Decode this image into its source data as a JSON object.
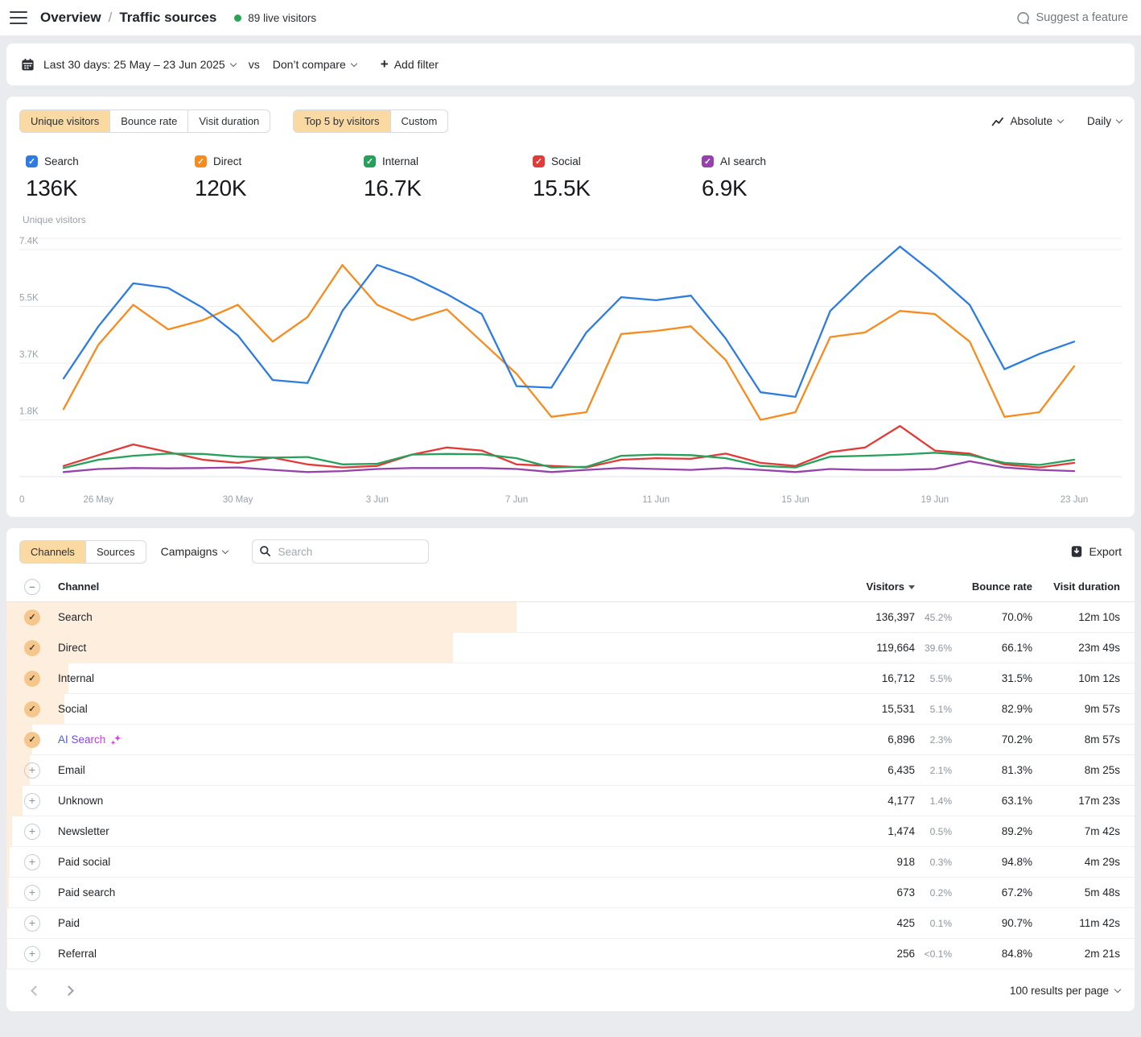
{
  "header": {
    "breadcrumb": [
      "Overview",
      "Traffic sources"
    ],
    "breadcrumb_sep": "/",
    "live_visitors": "89 live visitors",
    "suggest_label": "Suggest a feature"
  },
  "filter_bar": {
    "date_range": "Last 30 days: 25 May – 23 Jun 2025",
    "vs_label": "vs",
    "compare_label": "Don’t compare",
    "add_filter_label": "Add filter"
  },
  "chart_card": {
    "metric_tabs": {
      "items": [
        "Unique visitors",
        "Bounce rate",
        "Visit duration"
      ],
      "selected": 0
    },
    "view_tabs": {
      "items": [
        "Top 5 by visitors",
        "Custom"
      ],
      "selected": 0
    },
    "absolute_label": "Absolute",
    "interval_label": "Daily",
    "metrics": [
      {
        "label": "Search",
        "value": "136K",
        "color": "#2f7ce0"
      },
      {
        "label": "Direct",
        "value": "120K",
        "color": "#f78b1e"
      },
      {
        "label": "Internal",
        "value": "16.7K",
        "color": "#27a05b"
      },
      {
        "label": "Social",
        "value": "15.5K",
        "color": "#e23a38"
      },
      {
        "label": "AI search",
        "value": "6.9K",
        "color": "#9642ab"
      }
    ],
    "axis_label": "Unique visitors"
  },
  "chart_data": {
    "type": "line",
    "title": "Unique visitors",
    "grid": true,
    "legend_position": "top",
    "ylim": [
      0,
      7900
    ],
    "y_ticks": [
      {
        "label": "7.4K",
        "value": 7400
      },
      {
        "label": "5.5K",
        "value": 5550
      },
      {
        "label": "3.7K",
        "value": 3700
      },
      {
        "label": "1.8K",
        "value": 1850
      },
      {
        "label": "0",
        "value": 0
      }
    ],
    "x": [
      "25 May",
      "26 May",
      "27 May",
      "28 May",
      "29 May",
      "30 May",
      "31 May",
      "1 Jun",
      "2 Jun",
      "3 Jun",
      "4 Jun",
      "5 Jun",
      "6 Jun",
      "7 Jun",
      "8 Jun",
      "9 Jun",
      "10 Jun",
      "11 Jun",
      "12 Jun",
      "13 Jun",
      "14 Jun",
      "15 Jun",
      "16 Jun",
      "17 Jun",
      "18 Jun",
      "19 Jun",
      "20 Jun",
      "21 Jun",
      "22 Jun",
      "23 Jun"
    ],
    "x_ticks": [
      {
        "i": 1,
        "label": "26 May"
      },
      {
        "i": 5,
        "label": "30 May"
      },
      {
        "i": 9,
        "label": "3 Jun"
      },
      {
        "i": 13,
        "label": "7 Jun"
      },
      {
        "i": 17,
        "label": "11 Jun"
      },
      {
        "i": 21,
        "label": "15 Jun"
      },
      {
        "i": 25,
        "label": "19 Jun"
      },
      {
        "i": 29,
        "label": "23 Jun"
      }
    ],
    "series": [
      {
        "name": "Search",
        "color": "#2f7ce0",
        "values": [
          3200,
          4900,
          6300,
          6150,
          5500,
          4600,
          3150,
          3050,
          5400,
          6900,
          6500,
          5950,
          5300,
          2950,
          2900,
          4700,
          5850,
          5750,
          5900,
          4500,
          2750,
          2600,
          5400,
          6500,
          7500,
          6600,
          5600,
          3500,
          4000,
          4400
        ]
      },
      {
        "name": "Direct",
        "color": "#f78b1e",
        "values": [
          2200,
          4300,
          5600,
          4800,
          5100,
          5600,
          4400,
          5200,
          6900,
          5600,
          5100,
          5450,
          4400,
          3350,
          1950,
          2100,
          4650,
          4750,
          4900,
          3800,
          1850,
          2100,
          4550,
          4700,
          5400,
          5300,
          4400,
          1950,
          2100,
          3600
        ]
      },
      {
        "name": "Internal",
        "color": "#27a05b",
        "values": [
          280,
          550,
          680,
          750,
          740,
          650,
          620,
          640,
          400,
          420,
          720,
          740,
          730,
          600,
          300,
          320,
          680,
          720,
          700,
          600,
          350,
          300,
          650,
          680,
          720,
          780,
          700,
          450,
          380,
          550
        ]
      },
      {
        "name": "Social",
        "color": "#e23a38",
        "values": [
          350,
          700,
          1050,
          800,
          550,
          450,
          620,
          400,
          300,
          350,
          720,
          950,
          850,
          400,
          350,
          300,
          550,
          600,
          580,
          750,
          450,
          350,
          800,
          950,
          1650,
          850,
          750,
          400,
          300,
          450
        ]
      },
      {
        "name": "AI search",
        "color": "#9642ab",
        "values": [
          150,
          250,
          280,
          270,
          280,
          300,
          220,
          150,
          180,
          250,
          280,
          280,
          280,
          250,
          150,
          220,
          280,
          250,
          220,
          280,
          220,
          150,
          250,
          220,
          220,
          250,
          500,
          300,
          220,
          180
        ]
      }
    ]
  },
  "table_card": {
    "tabs": {
      "items": [
        "Channels",
        "Sources"
      ],
      "selected": 0
    },
    "campaigns_label": "Campaigns",
    "search_placeholder": "Search",
    "export_label": "Export",
    "columns": {
      "channel": "Channel",
      "visitors": "Visitors",
      "bounce": "Bounce rate",
      "duration": "Visit duration"
    },
    "rows": [
      {
        "channel": "Search",
        "state": "checked",
        "ai": false,
        "visitors": "136,397",
        "share": "45.2%",
        "share_pct": 45.2,
        "bounce": "70.0%",
        "duration": "12m 10s"
      },
      {
        "channel": "Direct",
        "state": "checked",
        "ai": false,
        "visitors": "119,664",
        "share": "39.6%",
        "share_pct": 39.6,
        "bounce": "66.1%",
        "duration": "23m 49s"
      },
      {
        "channel": "Internal",
        "state": "checked",
        "ai": false,
        "visitors": "16,712",
        "share": "5.5%",
        "share_pct": 5.5,
        "bounce": "31.5%",
        "duration": "10m 12s"
      },
      {
        "channel": "Social",
        "state": "checked",
        "ai": false,
        "visitors": "15,531",
        "share": "5.1%",
        "share_pct": 5.1,
        "bounce": "82.9%",
        "duration": "9m 57s"
      },
      {
        "channel": "AI Search",
        "state": "checked",
        "ai": true,
        "visitors": "6,896",
        "share": "2.3%",
        "share_pct": 2.3,
        "bounce": "70.2%",
        "duration": "8m 57s"
      },
      {
        "channel": "Email",
        "state": "addable",
        "ai": false,
        "visitors": "6,435",
        "share": "2.1%",
        "share_pct": 2.1,
        "bounce": "81.3%",
        "duration": "8m 25s"
      },
      {
        "channel": "Unknown",
        "state": "addable",
        "ai": false,
        "visitors": "4,177",
        "share": "1.4%",
        "share_pct": 1.4,
        "bounce": "63.1%",
        "duration": "17m 23s"
      },
      {
        "channel": "Newsletter",
        "state": "addable",
        "ai": false,
        "visitors": "1,474",
        "share": "0.5%",
        "share_pct": 0.5,
        "bounce": "89.2%",
        "duration": "7m 42s"
      },
      {
        "channel": "Paid social",
        "state": "addable",
        "ai": false,
        "visitors": "918",
        "share": "0.3%",
        "share_pct": 0.3,
        "bounce": "94.8%",
        "duration": "4m 29s"
      },
      {
        "channel": "Paid search",
        "state": "addable",
        "ai": false,
        "visitors": "673",
        "share": "0.2%",
        "share_pct": 0.2,
        "bounce": "67.2%",
        "duration": "5m 48s"
      },
      {
        "channel": "Paid",
        "state": "addable",
        "ai": false,
        "visitors": "425",
        "share": "0.1%",
        "share_pct": 0.1,
        "bounce": "90.7%",
        "duration": "11m 42s"
      },
      {
        "channel": "Referral",
        "state": "addable",
        "ai": false,
        "visitors": "256",
        "share": "<0.1%",
        "share_pct": 0.08,
        "bounce": "84.8%",
        "duration": "2m 21s"
      }
    ],
    "pagination": {
      "per_page": "100 results per page"
    }
  }
}
